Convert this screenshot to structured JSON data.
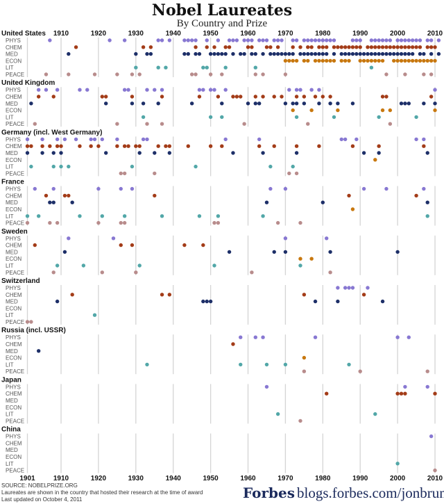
{
  "chart_data": {
    "type": "scatter",
    "title": "Nobel Laureates",
    "subtitle": "By Country and Prize",
    "x_range": [
      1901,
      2011
    ],
    "x_ticks_top": [
      "1910",
      "1920",
      "1930",
      "1940",
      "1950",
      "1960",
      "1970",
      "1980",
      "1990",
      "2000",
      "2010"
    ],
    "x_ticks_bottom": [
      "1901",
      "1910",
      "1920",
      "1930",
      "1940",
      "1950",
      "1960",
      "1970",
      "1980",
      "1990",
      "2000",
      "2010"
    ],
    "grid": true,
    "prizes": [
      "PHYS",
      "CHEM",
      "MED",
      "ECON",
      "LIT",
      "PEACE"
    ],
    "prize_colors": {
      "PHYS": "#8878d2",
      "CHEM": "#a33c18",
      "MED": "#1d2f68",
      "ECON": "#c8780f",
      "LIT": "#52a7a8",
      "PEACE": "#b88c8c"
    },
    "countries": [
      {
        "name": "United States",
        "years": {
          "PHYS": [
            1907,
            1923,
            1927,
            1936,
            1937,
            1939,
            1943,
            1944,
            1945,
            1946,
            1949,
            1952,
            1955,
            1956,
            1957,
            1959,
            1960,
            1961,
            1963,
            1964,
            1965,
            1967,
            1968,
            1969,
            1972,
            1973,
            1975,
            1976,
            1977,
            1978,
            1979,
            1980,
            1981,
            1982,
            1983,
            1988,
            1989,
            1990,
            1993,
            1994,
            1995,
            1996,
            1997,
            1998,
            2000,
            2001,
            2002,
            2003,
            2004,
            2005,
            2006,
            2008,
            2009,
            2011
          ],
          "CHEM": [
            1914,
            1932,
            1934,
            1946,
            1949,
            1951,
            1954,
            1955,
            1960,
            1961,
            1965,
            1966,
            1968,
            1972,
            1974,
            1976,
            1977,
            1979,
            1980,
            1981,
            1983,
            1984,
            1985,
            1986,
            1987,
            1988,
            1989,
            1990,
            1992,
            1993,
            1994,
            1995,
            1996,
            1997,
            1998,
            1999,
            2000,
            2001,
            2002,
            2003,
            2004,
            2005,
            2006,
            2008,
            2009,
            2010
          ],
          "MED": [
            1912,
            1930,
            1933,
            1934,
            1943,
            1944,
            1946,
            1947,
            1950,
            1951,
            1952,
            1953,
            1954,
            1956,
            1958,
            1959,
            1961,
            1962,
            1964,
            1966,
            1967,
            1968,
            1969,
            1970,
            1971,
            1972,
            1974,
            1975,
            1976,
            1977,
            1978,
            1979,
            1980,
            1981,
            1983,
            1985,
            1986,
            1987,
            1988,
            1989,
            1990,
            1991,
            1992,
            1993,
            1994,
            1995,
            1996,
            1997,
            1998,
            1999,
            2000,
            2001,
            2002,
            2003,
            2004,
            2006,
            2007,
            2009,
            2011
          ],
          "ECON": [
            1970,
            1971,
            1972,
            1973,
            1975,
            1976,
            1978,
            1979,
            1980,
            1981,
            1982,
            1983,
            1985,
            1986,
            1987,
            1990,
            1991,
            1992,
            1993,
            1994,
            1995,
            1996,
            1999,
            2000,
            2001,
            2002,
            2003,
            2004,
            2005,
            2006,
            2007,
            2008,
            2009,
            2010
          ],
          "LIT": [
            1930,
            1936,
            1938,
            1948,
            1949,
            1954,
            1962,
            1993
          ],
          "PEACE": [
            1906,
            1912,
            1919,
            1925,
            1929,
            1931,
            1945,
            1946,
            1950,
            1953,
            1962,
            1964,
            1970,
            1997,
            2002,
            2007,
            2009
          ]
        }
      },
      {
        "name": "United Kingdom",
        "years": {
          "PHYS": [
            1904,
            1906,
            1909,
            1915,
            1917,
            1927,
            1928,
            1933,
            1935,
            1937,
            1947,
            1948,
            1950,
            1951,
            1954,
            1971,
            1973,
            1974,
            1977,
            1979,
            2010
          ],
          "CHEM": [
            1904,
            1908,
            1921,
            1922,
            1929,
            1937,
            1947,
            1952,
            1956,
            1957,
            1958,
            1962,
            1964,
            1967,
            1969,
            1973,
            1975,
            1978,
            1980,
            1982,
            1996,
            1997,
            2009
          ],
          "MED": [
            1902,
            1922,
            1929,
            1932,
            1936,
            1945,
            1953,
            1960,
            1962,
            1963,
            1970,
            1972,
            1973,
            1975,
            1979,
            1982,
            1984,
            1988,
            2001,
            2002,
            2003,
            2007,
            2010
          ],
          "ECON": [
            1972,
            1977,
            1984,
            1996,
            1998,
            2010
          ],
          "LIT": [
            1932,
            1950,
            1953,
            1973,
            1983,
            1995,
            2005
          ],
          "PEACE": [
            1903,
            1925,
            1933,
            1937,
            1959,
            1976,
            1998
          ]
        }
      },
      {
        "name": "Germany (incl. West Germany)",
        "years": {
          "PHYS": [
            1901,
            1905,
            1909,
            1911,
            1914,
            1918,
            1919,
            1921,
            1925,
            1932,
            1933,
            1954,
            1963,
            1985,
            1986,
            1989,
            2005,
            2007
          ],
          "CHEM": [
            1901,
            1902,
            1905,
            1907,
            1909,
            1910,
            1915,
            1918,
            1920,
            1925,
            1927,
            1928,
            1930,
            1931,
            1936,
            1938,
            1939,
            1944,
            1950,
            1953,
            1963,
            1967,
            1973,
            1979,
            1988,
            1995,
            2007
          ],
          "MED": [
            1901,
            1905,
            1908,
            1910,
            1922,
            1931,
            1935,
            1939,
            1956,
            1964,
            1973,
            1991,
            1995,
            2008
          ],
          "ECON": [
            1994
          ],
          "LIT": [
            1902,
            1908,
            1910,
            1912,
            1929,
            1946,
            1966,
            1972
          ],
          "PEACE": [
            1926,
            1927,
            1935,
            1971,
            1973
          ]
        }
      },
      {
        "name": "France",
        "years": {
          "PHYS": [
            1903,
            1908,
            1920,
            1926,
            1929,
            1966,
            1970,
            1991,
            1997,
            2007
          ],
          "CHEM": [
            1906,
            1911,
            1912,
            1935,
            1987,
            2005
          ],
          "MED": [
            1907,
            1908,
            1913,
            1965,
            1980,
            2008
          ],
          "ECON": [
            1988
          ],
          "LIT": [
            1901,
            1904,
            1915,
            1921,
            1927,
            1937,
            1947,
            1952,
            1964,
            2008
          ],
          "PEACE": [
            1901,
            1907,
            1909,
            1920,
            1926,
            1927,
            1951,
            1952,
            1968,
            1974
          ]
        }
      },
      {
        "name": "Sweden",
        "years": {
          "PHYS": [
            1912,
            1924,
            1970,
            1981
          ],
          "CHEM": [
            1903,
            1926,
            1929,
            1943,
            1948
          ],
          "MED": [
            1911,
            1955,
            1967,
            1970,
            1982,
            2000
          ],
          "ECON": [
            1974,
            1977
          ],
          "LIT": [
            1909,
            1916,
            1931,
            1951,
            1974
          ],
          "PEACE": [
            1908,
            1921,
            1930,
            1961,
            1982
          ]
        }
      },
      {
        "name": "Switzerland",
        "years": {
          "PHYS": [
            1984,
            1986,
            1987,
            1988,
            1992
          ],
          "CHEM": [
            1913,
            1937,
            1939,
            1975,
            1991
          ],
          "MED": [
            1909,
            1948,
            1949,
            1950,
            1978,
            1984,
            1996
          ],
          "ECON": [],
          "LIT": [
            1919
          ],
          "PEACE": [
            1901,
            1902
          ]
        }
      },
      {
        "name": "Russia (incl. USSR)",
        "years": {
          "PHYS": [
            1958,
            1962,
            1964,
            1978,
            2000,
            2003
          ],
          "CHEM": [
            1956
          ],
          "MED": [
            1904
          ],
          "ECON": [
            1975
          ],
          "LIT": [
            1933,
            1958,
            1965,
            1970,
            1987
          ],
          "PEACE": [
            1975,
            1990,
            2008
          ]
        }
      },
      {
        "name": "Japan",
        "years": {
          "PHYS": [
            1965,
            2002,
            2008
          ],
          "CHEM": [
            1981,
            2000,
            2001,
            2002,
            2010
          ],
          "MED": [],
          "ECON": [],
          "LIT": [
            1968,
            1994
          ],
          "PEACE": [
            1974
          ]
        }
      },
      {
        "name": "China",
        "years": {
          "PHYS": [
            2009
          ],
          "CHEM": [],
          "MED": [],
          "ECON": [],
          "LIT": [
            2000
          ],
          "PEACE": [
            2010
          ]
        }
      }
    ]
  },
  "footer": {
    "source": "SOURCE: NOBELPRIZE.ORG",
    "note": "Laureates are shown in the country that hosted their research at the time of award",
    "updated": "Last updated on October 4, 2011",
    "logo": "Forbes",
    "url": "blogs.forbes.com/jonbruner"
  }
}
